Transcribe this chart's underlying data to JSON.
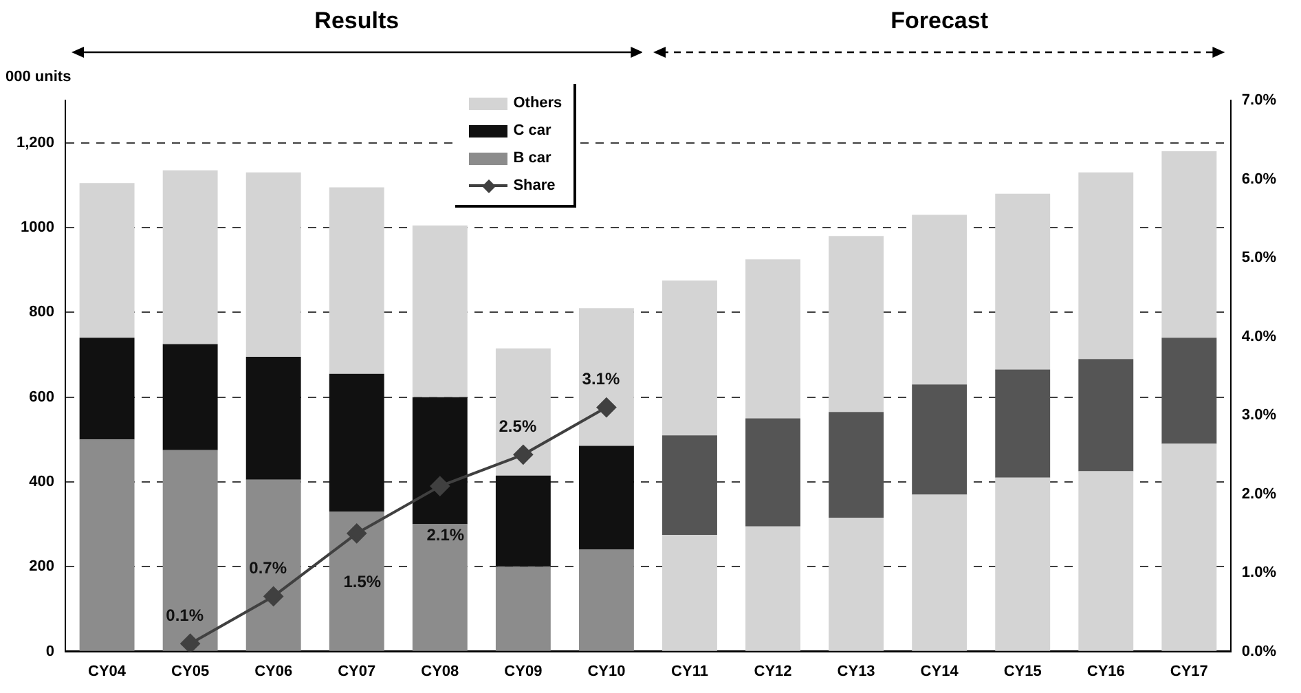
{
  "chart_data": {
    "type": "bar",
    "stacked": true,
    "ylabel": "000 units",
    "categories": [
      "CY04",
      "CY05",
      "CY06",
      "CY07",
      "CY08",
      "CY09",
      "CY10",
      "CY11",
      "CY12",
      "CY13",
      "CY14",
      "CY15",
      "CY16",
      "CY17"
    ],
    "series": [
      {
        "name": "B car",
        "color": "#8c8c8c",
        "colors": [
          "#8c8c8c",
          "#8c8c8c",
          "#8c8c8c",
          "#8c8c8c",
          "#8c8c8c",
          "#8c8c8c",
          "#8c8c8c",
          "#d4d4d4",
          "#d4d4d4",
          "#d4d4d4",
          "#d4d4d4",
          "#d4d4d4",
          "#d4d4d4",
          "#d4d4d4"
        ],
        "values": [
          500,
          475,
          405,
          330,
          300,
          200,
          240,
          275,
          295,
          315,
          370,
          410,
          425,
          490
        ]
      },
      {
        "name": "C car",
        "color": "#111111",
        "colors": [
          "#111111",
          "#111111",
          "#111111",
          "#111111",
          "#111111",
          "#111111",
          "#111111",
          "#555555",
          "#555555",
          "#555555",
          "#555555",
          "#555555",
          "#555555",
          "#555555"
        ],
        "values": [
          240,
          250,
          290,
          325,
          300,
          215,
          245,
          235,
          255,
          250,
          260,
          255,
          265,
          250
        ]
      },
      {
        "name": "Others",
        "color": "#d4d4d4",
        "values": [
          365,
          410,
          435,
          440,
          405,
          300,
          325,
          365,
          375,
          415,
          400,
          415,
          440,
          440
        ]
      },
      {
        "name": "Share",
        "type": "line",
        "axis": "y2",
        "color": "#404040",
        "marker": "diamond",
        "line_style": "solid",
        "values": [
          null,
          0.1,
          0.7,
          1.5,
          2.1,
          2.5,
          3.1,
          null,
          null,
          null,
          null,
          null,
          null,
          null
        ],
        "value_labels": [
          null,
          "0.1%",
          "0.7%",
          "1.5%",
          "2.1%",
          "2.5%",
          "3.1%",
          null,
          null,
          null,
          null,
          null,
          null,
          null
        ]
      }
    ],
    "ylim": [
      0,
      1300
    ],
    "yticks": [
      0,
      200,
      400,
      600,
      800,
      1000,
      {
        "value": 1200,
        "label": "1,200"
      }
    ],
    "y2lim": [
      0,
      7
    ],
    "y2ticks": [
      {
        "value": 0,
        "label": "0.0%"
      },
      {
        "value": 1,
        "label": "1.0%"
      },
      {
        "value": 2,
        "label": "2.0%"
      },
      {
        "value": 3,
        "label": "3.0%"
      },
      {
        "value": 4,
        "label": "4.0%"
      },
      {
        "value": 5,
        "label": "5.0%"
      },
      {
        "value": 6,
        "label": "6.0%"
      },
      {
        "value": 7,
        "label": "7.0%"
      }
    ],
    "annotations": [
      "Results",
      "Forecast"
    ],
    "grid": "y",
    "legend": "top"
  }
}
